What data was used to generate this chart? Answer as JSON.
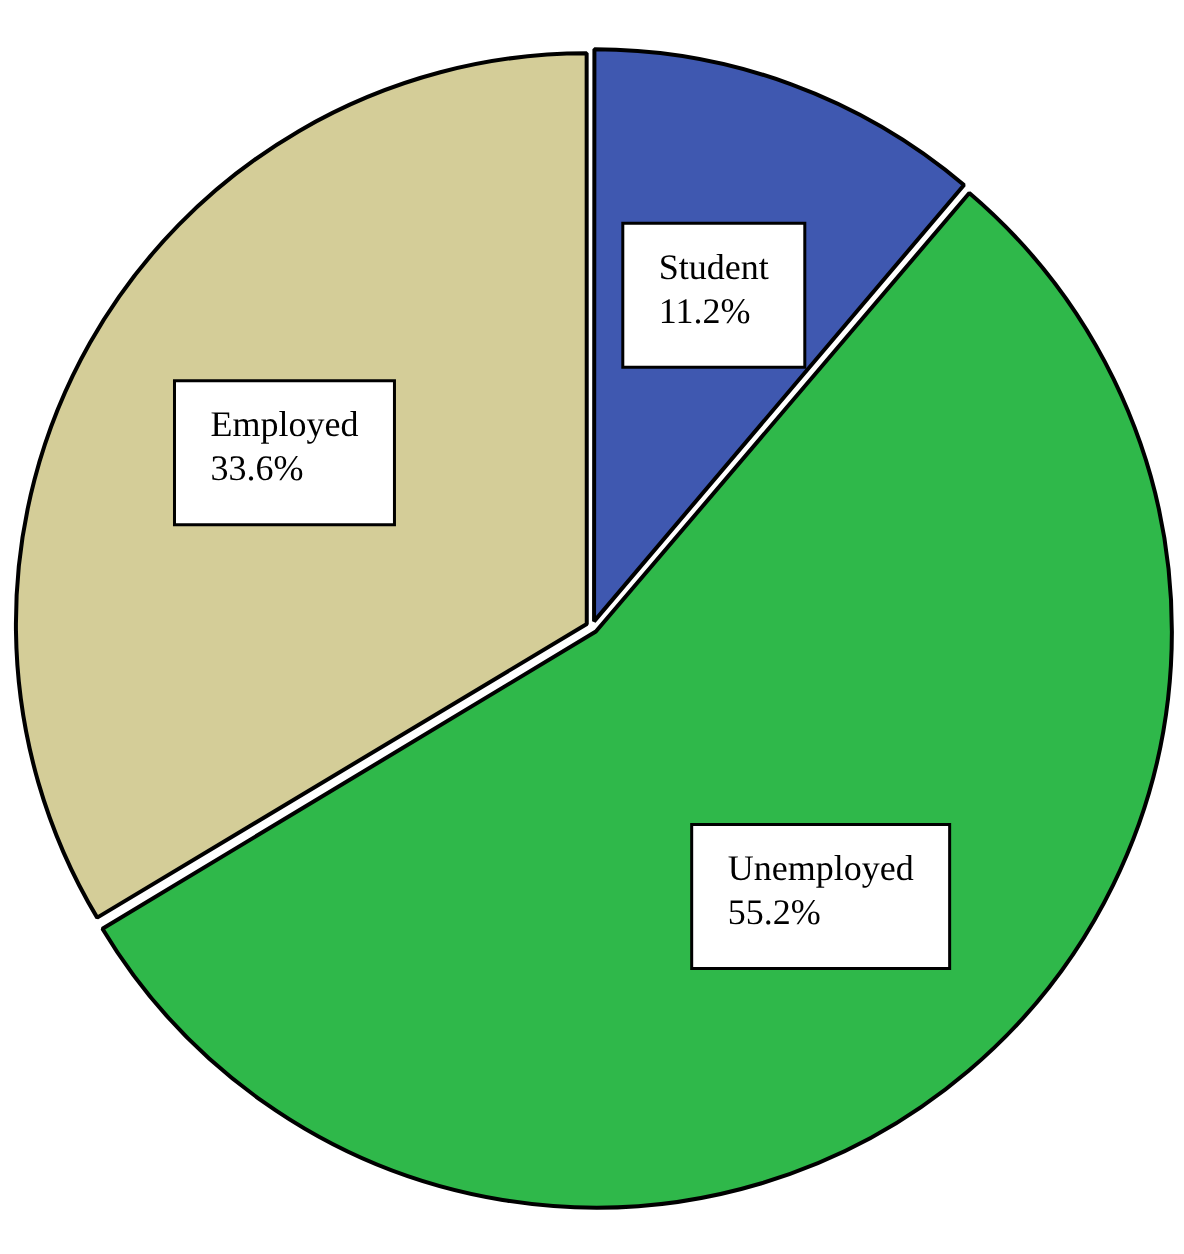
{
  "chart_data": {
    "type": "pie",
    "categories": [
      "Student",
      "Unemployed",
      "Employed"
    ],
    "values": [
      11.2,
      55.2,
      33.6
    ],
    "colors": [
      "#3f58b0",
      "#2fb84a",
      "#d4cd98"
    ],
    "value_labels": [
      "11.2%",
      "55.2%",
      "33.6%"
    ],
    "legend": false
  }
}
